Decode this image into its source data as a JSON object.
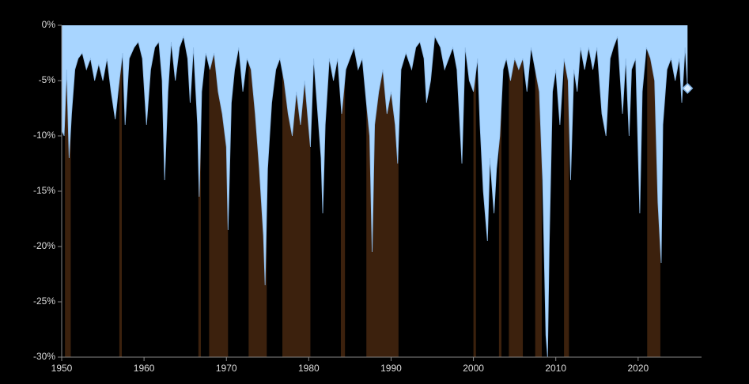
{
  "chart_data": {
    "type": "area",
    "x": [
      1950.0,
      1950.3,
      1950.6,
      1950.9,
      1951.2,
      1951.6,
      1952.0,
      1952.5,
      1953.0,
      1953.5,
      1954.0,
      1954.5,
      1955.0,
      1955.5,
      1956.0,
      1956.5,
      1957.0,
      1957.4,
      1957.7,
      1958.2,
      1958.8,
      1959.3,
      1959.8,
      1960.3,
      1960.8,
      1961.3,
      1961.8,
      1962.2,
      1962.5,
      1962.9,
      1963.3,
      1963.8,
      1964.3,
      1964.8,
      1965.3,
      1965.6,
      1966.0,
      1966.5,
      1966.7,
      1967.0,
      1967.5,
      1968.0,
      1968.5,
      1969.0,
      1969.5,
      1970.0,
      1970.2,
      1970.6,
      1971.0,
      1971.5,
      1972.0,
      1972.5,
      1973.0,
      1973.5,
      1974.0,
      1974.5,
      1974.7,
      1975.0,
      1975.5,
      1976.0,
      1976.5,
      1977.0,
      1977.5,
      1978.0,
      1978.5,
      1979.0,
      1979.5,
      1980.2,
      1980.6,
      1981.0,
      1981.5,
      1981.7,
      1982.0,
      1982.5,
      1983.0,
      1983.5,
      1984.0,
      1984.5,
      1985.0,
      1985.5,
      1986.0,
      1986.5,
      1987.0,
      1987.4,
      1987.7,
      1988.0,
      1988.5,
      1989.0,
      1989.5,
      1990.0,
      1990.5,
      1990.8,
      1991.2,
      1991.8,
      1992.5,
      1993.0,
      1993.5,
      1994.0,
      1994.3,
      1994.8,
      1995.3,
      1996.0,
      1996.5,
      1997.0,
      1997.5,
      1998.0,
      1998.6,
      1999.0,
      1999.5,
      2000.0,
      2000.5,
      2000.8,
      2001.2,
      2001.7,
      2002.0,
      2002.5,
      2002.8,
      2003.2,
      2003.6,
      2004.0,
      2004.5,
      2005.0,
      2005.5,
      2006.0,
      2006.5,
      2007.0,
      2007.5,
      2008.0,
      2008.4,
      2008.8,
      2009.0,
      2009.2,
      2009.6,
      2010.0,
      2010.5,
      2011.0,
      2011.5,
      2011.8,
      2012.2,
      2012.6,
      2013.0,
      2013.5,
      2014.0,
      2014.5,
      2015.0,
      2015.6,
      2016.1,
      2016.6,
      2017.0,
      2017.5,
      2018.1,
      2018.5,
      2018.9,
      2019.2,
      2019.7,
      2020.2,
      2020.5,
      2021.0,
      2021.5,
      2022.0,
      2022.4,
      2022.8,
      2023.0,
      2023.5,
      2024.0,
      2024.5,
      2025.0,
      2025.3,
      2025.7,
      2026.0
    ],
    "values": [
      -9.5,
      -10,
      -4,
      -12,
      -8,
      -4,
      -3,
      -2.5,
      -4,
      -3,
      -5,
      -3.5,
      -5,
      -3,
      -6,
      -8.5,
      -5,
      -2.5,
      -9,
      -3,
      -2,
      -1.5,
      -3,
      -9,
      -4,
      -2,
      -1.5,
      -5,
      -14,
      -6,
      -1.5,
      -5,
      -2,
      -1,
      -3,
      -7,
      -2,
      -9,
      -15.5,
      -6,
      -2.5,
      -4,
      -2.5,
      -6,
      -8,
      -11,
      -18.5,
      -7,
      -4,
      -2,
      -6,
      -3,
      -4,
      -8,
      -13,
      -19,
      -23.5,
      -13,
      -7,
      -4,
      -3,
      -5,
      -8,
      -10,
      -6,
      -9,
      -5,
      -11,
      -3,
      -7,
      -12,
      -17,
      -9,
      -3,
      -5,
      -3,
      -8,
      -4,
      -3,
      -2,
      -4,
      -3,
      -7,
      -10,
      -20.5,
      -9,
      -6,
      -4,
      -8,
      -6,
      -9,
      -12.5,
      -4,
      -2.5,
      -4,
      -2,
      -1.5,
      -3,
      -7,
      -5,
      -1,
      -2,
      -4,
      -3,
      -2,
      -4,
      -12.5,
      -2,
      -5,
      -6,
      -3,
      -9,
      -15,
      -19.5,
      -12,
      -17,
      -13,
      -10,
      -4,
      -3,
      -5,
      -3,
      -4,
      -3,
      -6,
      -2,
      -4,
      -6,
      -14,
      -28,
      -30,
      -20,
      -6,
      -4,
      -9,
      -3,
      -5,
      -14,
      -4,
      -6,
      -2,
      -4,
      -2,
      -4,
      -2,
      -8,
      -10,
      -3,
      -2,
      -1,
      -8,
      -3,
      -10,
      -4,
      -3,
      -17,
      -6,
      -2,
      -3,
      -5,
      -16,
      -21.5,
      -9,
      -4,
      -3,
      -5,
      -3,
      -7,
      -2,
      -5.7
    ],
    "color": "#a8d5ff",
    "periods": [
      [
        1950.4,
        1951.1
      ],
      [
        1957.0,
        1957.3
      ],
      [
        1966.6,
        1966.9
      ],
      [
        1967.9,
        1970.2
      ],
      [
        1972.7,
        1974.9
      ],
      [
        1976.8,
        1980.2
      ],
      [
        1983.9,
        1984.4
      ],
      [
        1987.0,
        1990.9
      ],
      [
        2000.0,
        2000.3
      ],
      [
        2003.1,
        2003.4
      ],
      [
        2004.3,
        2006.0
      ],
      [
        2007.5,
        2008.3
      ],
      [
        2011.0,
        2011.6
      ],
      [
        2021.1,
        2022.7
      ]
    ],
    "period_color": "#3c210d",
    "xlim": [
      1950,
      2027.7
    ],
    "xticks": [
      1950,
      1960,
      1970,
      1980,
      1990,
      2000,
      2010,
      2020
    ],
    "ylim": [
      -30,
      0
    ],
    "yticks": [
      {
        "value": 0,
        "label": "0%"
      },
      {
        "value": -5,
        "label": "-5%"
      },
      {
        "value": -10,
        "label": "-10%"
      },
      {
        "value": -15,
        "label": "-15%"
      },
      {
        "value": -20,
        "label": "-20%"
      },
      {
        "value": -25,
        "label": "-25%"
      },
      {
        "value": -30,
        "label": "-30%"
      }
    ]
  }
}
